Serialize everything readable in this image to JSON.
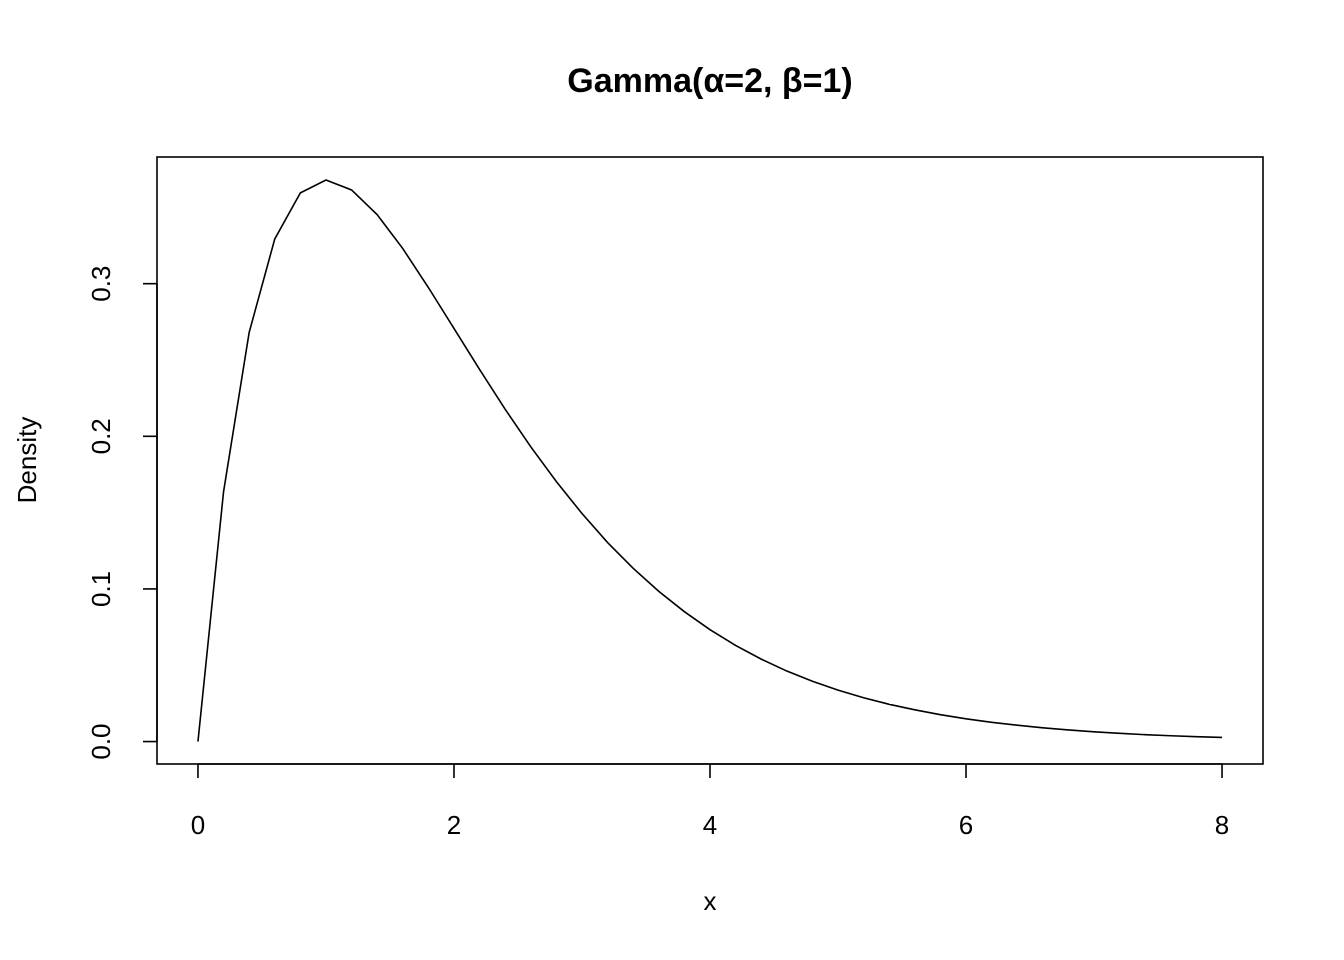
{
  "chart_data": {
    "type": "line",
    "title": "Gamma(α=2, β=1)",
    "xlabel": "x",
    "ylabel": "Density",
    "xlim": [
      -0.32,
      8.32
    ],
    "ylim": [
      -0.0147,
      0.383
    ],
    "x_ticks": [
      0,
      2,
      4,
      6,
      8
    ],
    "x_tick_labels": [
      "0",
      "2",
      "4",
      "6",
      "8"
    ],
    "y_ticks": [
      0.0,
      0.1,
      0.2,
      0.3
    ],
    "y_tick_labels": [
      "0.0",
      "0.1",
      "0.2",
      "0.3"
    ],
    "grid": false,
    "series": [
      {
        "color": "#000000",
        "x": [
          0,
          0.2,
          0.4,
          0.6,
          0.8,
          1.0,
          1.2,
          1.4,
          1.6,
          1.8,
          2.0,
          2.2,
          2.4,
          2.6,
          2.8,
          3.0,
          3.2,
          3.4,
          3.6,
          3.8,
          4.0,
          4.2,
          4.4,
          4.6,
          4.8,
          5.0,
          5.2,
          5.4,
          5.6,
          5.8,
          6.0,
          6.2,
          6.4,
          6.6,
          6.8,
          7.0,
          7.2,
          7.4,
          7.6,
          7.8,
          8.0
        ],
        "y": [
          0.0,
          0.1637,
          0.2681,
          0.3293,
          0.3595,
          0.3679,
          0.3614,
          0.3452,
          0.323,
          0.2975,
          0.2707,
          0.2438,
          0.2177,
          0.1931,
          0.1703,
          0.1494,
          0.1304,
          0.1135,
          0.0984,
          0.0851,
          0.0733,
          0.063,
          0.054,
          0.0462,
          0.0395,
          0.0337,
          0.0287,
          0.0244,
          0.0208,
          0.0176,
          0.0149,
          0.0126,
          0.0107,
          0.009,
          0.0076,
          0.0064,
          0.0054,
          0.0045,
          0.0038,
          0.0032,
          0.0027
        ]
      }
    ]
  }
}
